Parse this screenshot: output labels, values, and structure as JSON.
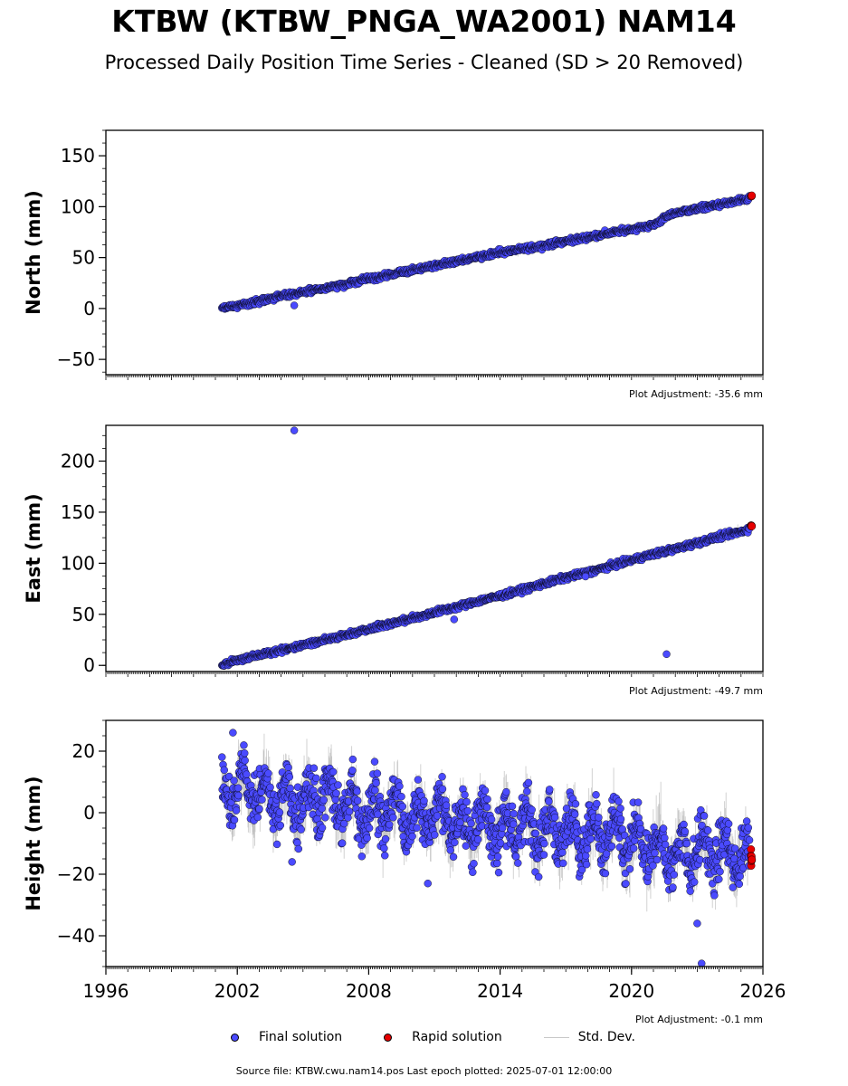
{
  "header": {
    "title": "KTBW (KTBW_PNGA_WA2001) NAM14",
    "subtitle": "Processed Daily Position Time Series - Cleaned (SD > 20 Removed)"
  },
  "legend": {
    "final_label": "Final solution",
    "rapid_label": "Rapid solution",
    "sd_label": "Std. Dev."
  },
  "footer": {
    "source": "Source file: KTBW.cwu.nam14.pos  Last epoch plotted: 2025-07-01 12:00:00"
  },
  "colors": {
    "final": "#4a4aff",
    "rapid": "#e60000",
    "std_dev": "#b4b4b4",
    "marker_edge": "#000000"
  },
  "chart_data": [
    {
      "type": "scatter",
      "ylabel": "North (mm)",
      "xlabel": "",
      "xlim": [
        1996,
        2026
      ],
      "ylim": [
        -65,
        175
      ],
      "yticks": [
        -50,
        0,
        50,
        100,
        150
      ],
      "adjustment": "Plot Adjustment: -35.6 mm",
      "series": [
        {
          "name": "Final solution",
          "x": [
            2001.3,
            2002.0,
            2003.0,
            2004.0,
            2005.0,
            2006.0,
            2007.0,
            2008.0,
            2009.0,
            2010.0,
            2011.0,
            2012.0,
            2013.0,
            2014.0,
            2015.0,
            2016.0,
            2017.0,
            2018.0,
            2019.0,
            2020.0,
            2021.0,
            2021.6,
            2022.0,
            2023.0,
            2024.0,
            2025.0,
            2025.4
          ],
          "y": [
            0,
            3,
            7,
            12,
            16,
            20,
            24,
            29,
            33,
            38,
            42,
            46,
            51,
            55,
            58,
            62,
            66,
            70,
            74,
            78,
            82,
            90,
            94,
            98,
            102,
            106,
            108
          ]
        },
        {
          "name": "Rapid solution",
          "x": [
            2025.45,
            2025.5
          ],
          "y": [
            110,
            111
          ]
        }
      ],
      "outliers": [
        {
          "x": 2004.6,
          "y": 3
        }
      ]
    },
    {
      "type": "scatter",
      "ylabel": "East (mm)",
      "xlabel": "",
      "xlim": [
        1996,
        2026
      ],
      "ylim": [
        -6,
        235
      ],
      "yticks": [
        0,
        50,
        100,
        150,
        200
      ],
      "adjustment": "Plot Adjustment: -49.7 mm",
      "series": [
        {
          "name": "Final solution",
          "x": [
            2001.3,
            2002.0,
            2003.0,
            2004.0,
            2005.0,
            2006.0,
            2007.0,
            2008.0,
            2009.0,
            2010.0,
            2011.0,
            2012.0,
            2013.0,
            2014.0,
            2015.0,
            2016.0,
            2017.0,
            2018.0,
            2019.0,
            2020.0,
            2021.0,
            2022.0,
            2023.0,
            2024.0,
            2025.0,
            2025.4
          ],
          "y": [
            0,
            5,
            10,
            15,
            20,
            25,
            30,
            36,
            41,
            46,
            52,
            57,
            63,
            68,
            74,
            80,
            86,
            91,
            97,
            103,
            109,
            114,
            120,
            126,
            131,
            134
          ]
        },
        {
          "name": "Rapid solution",
          "x": [
            2025.45,
            2025.5
          ],
          "y": [
            136,
            137
          ]
        }
      ],
      "outliers": [
        {
          "x": 2004.6,
          "y": 230
        },
        {
          "x": 2011.9,
          "y": 45
        },
        {
          "x": 2021.6,
          "y": 11
        },
        {
          "x": 2017.9,
          "y": 87
        }
      ]
    },
    {
      "type": "scatter",
      "ylabel": "Height (mm)",
      "xlabel": "",
      "xlim": [
        1996,
        2026
      ],
      "ylim": [
        -50,
        30
      ],
      "yticks": [
        -40,
        -20,
        0,
        20
      ],
      "xticks": [
        1996,
        2002,
        2008,
        2014,
        2020,
        2026
      ],
      "adjustment": "Plot Adjustment: -0.1 mm",
      "series": [
        {
          "name": "Final solution",
          "x": [
            2001.3,
            2002.0,
            2003.0,
            2004.0,
            2005.0,
            2006.0,
            2007.0,
            2008.0,
            2009.0,
            2010.0,
            2011.0,
            2012.0,
            2013.0,
            2014.0,
            2015.0,
            2016.0,
            2017.0,
            2018.0,
            2019.0,
            2020.0,
            2021.0,
            2022.0,
            2023.0,
            2024.0,
            2025.0,
            2025.4
          ],
          "y": [
            5,
            8,
            6,
            4,
            3,
            5,
            2,
            0,
            1,
            -2,
            0,
            -4,
            -3,
            -5,
            -4,
            -6,
            -6,
            -8,
            -7,
            -10,
            -12,
            -14,
            -12,
            -13,
            -14,
            -15
          ]
        },
        {
          "name": "Rapid solution",
          "x": [
            2025.45,
            2025.5
          ],
          "y": [
            -12,
            -16
          ]
        }
      ],
      "outliers": [
        {
          "x": 2001.8,
          "y": 26
        },
        {
          "x": 2023.0,
          "y": -36
        },
        {
          "x": 2023.2,
          "y": -49
        },
        {
          "x": 2004.5,
          "y": -16
        },
        {
          "x": 2010.7,
          "y": -23
        }
      ]
    }
  ]
}
